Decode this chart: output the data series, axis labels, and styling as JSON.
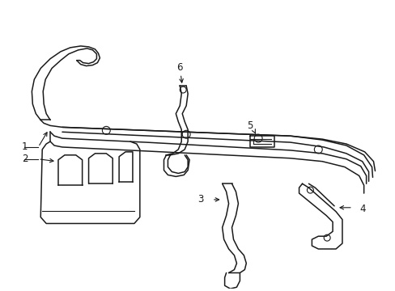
{
  "background_color": "#ffffff",
  "line_color": "#1a1a1a",
  "line_width": 1.1,
  "fig_width": 4.89,
  "fig_height": 3.6,
  "dpi": 100
}
